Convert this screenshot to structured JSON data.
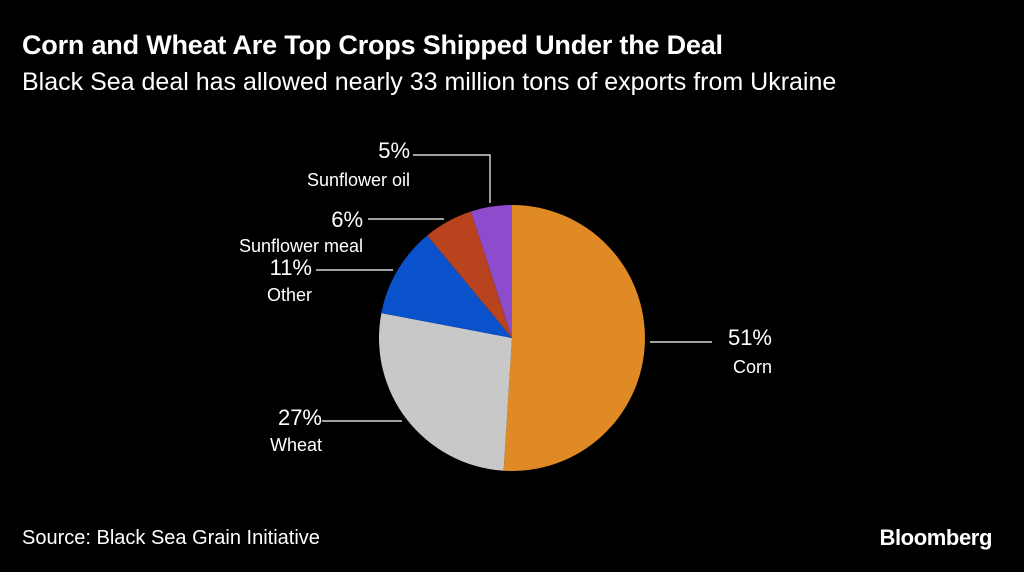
{
  "title": "Corn and Wheat Are Top Crops Shipped Under the Deal",
  "subtitle": "Black Sea deal has allowed nearly 33 million tons of exports from Ukraine",
  "source": "Source: Black Sea Grain Initiative",
  "brand": "Bloomberg",
  "chart_data": {
    "type": "pie",
    "title": "Corn and Wheat Are Top Crops Shipped Under the Deal",
    "subtitle": "Black Sea deal has allowed nearly 33 million tons of exports from Ukraine",
    "unit": "%",
    "start": "12 o'clock, clockwise",
    "slices": [
      {
        "name": "Corn",
        "value": 51,
        "label": "51%",
        "color": "#e08a25"
      },
      {
        "name": "Wheat",
        "value": 27,
        "label": "27%",
        "color": "#c8c8c8"
      },
      {
        "name": "Other",
        "value": 11,
        "label": "11%",
        "color": "#0a52cc"
      },
      {
        "name": "Sunflower meal",
        "value": 6,
        "label": "6%",
        "color": "#b8431e"
      },
      {
        "name": "Sunflower oil",
        "value": 5,
        "label": "5%",
        "color": "#8c4ccc"
      }
    ]
  }
}
